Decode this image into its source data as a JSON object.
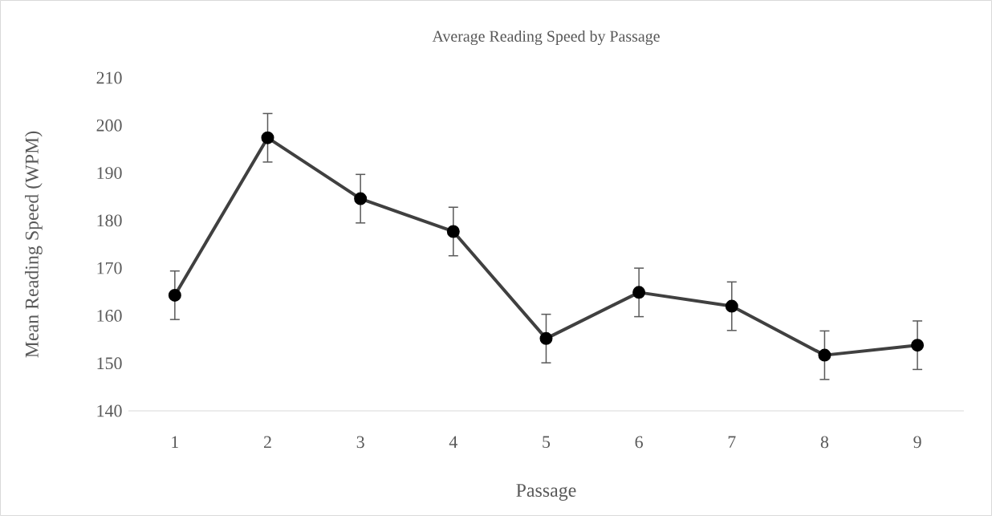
{
  "chart_data": {
    "type": "line",
    "title": "Average Reading Speed by Passage",
    "xlabel": "Passage",
    "ylabel": "Mean Reading Speed (WPM)",
    "categories": [
      "1",
      "2",
      "3",
      "4",
      "5",
      "6",
      "7",
      "8",
      "9"
    ],
    "series": [
      {
        "color": "#404040",
        "values": [
          164.3,
          197.4,
          184.6,
          177.7,
          155.2,
          164.9,
          162.0,
          151.7,
          153.8
        ],
        "errors": [
          5.1,
          5.1,
          5.1,
          5.1,
          5.1,
          5.1,
          5.1,
          5.1,
          5.1
        ]
      }
    ],
    "ylim": [
      140,
      210
    ],
    "yticks": [
      140,
      150,
      160,
      170,
      180,
      190,
      200,
      210
    ],
    "grid": false,
    "marker": "circle",
    "line_style": "solid"
  }
}
